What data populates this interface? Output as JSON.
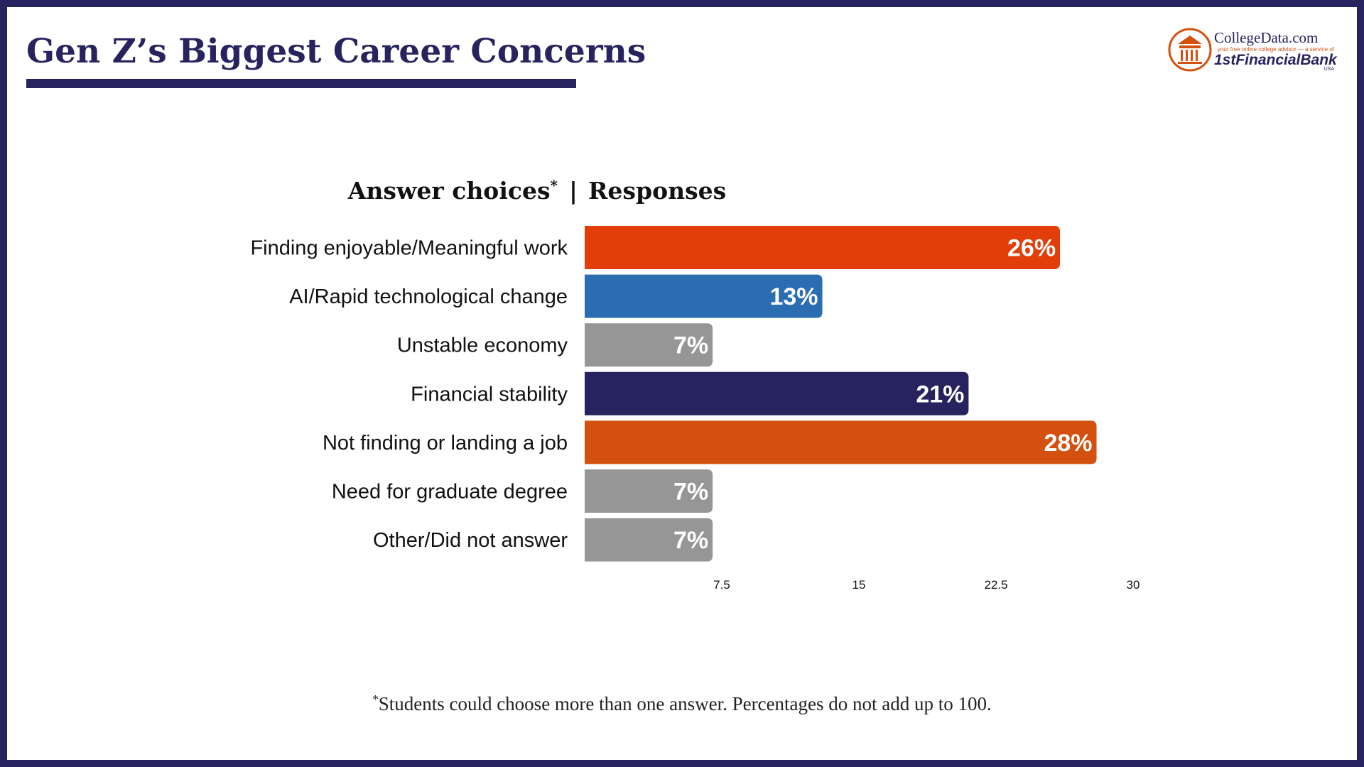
{
  "chart_data": {
    "type": "bar",
    "orientation": "horizontal",
    "title": "Gen Z’s Biggest Career Concerns",
    "category_header": "Answer choices",
    "category_header_mark": "*",
    "header_separator": "|",
    "value_header": "Responses",
    "categories": [
      "Finding enjoyable/Meaningful work",
      "AI/Rapid technological change",
      "Unstable economy",
      "Financial stability",
      "Not finding or landing a job",
      "Need for graduate degree",
      "Other/Did not answer"
    ],
    "values": [
      26,
      13,
      7,
      21,
      28,
      7,
      7
    ],
    "value_labels": [
      "26%",
      "13%",
      "7%",
      "21%",
      "28%",
      "7%",
      "7%"
    ],
    "colors": [
      "#e23e0a",
      "#2a6db0",
      "#969696",
      "#27235f",
      "#d4500f",
      "#969696",
      "#969696"
    ],
    "xlim": [
      0,
      30
    ],
    "xticks": [
      7.5,
      15,
      22.5,
      30
    ],
    "grid": false,
    "footnote_mark": "*",
    "footnote": "Students could choose more than one answer. Percentages do not add up to 100.",
    "logo": {
      "name": "CollegeData.com",
      "tagline": "your free online college advisor — a service of",
      "bank": "1stFinancialBank",
      "country": "USA"
    }
  }
}
